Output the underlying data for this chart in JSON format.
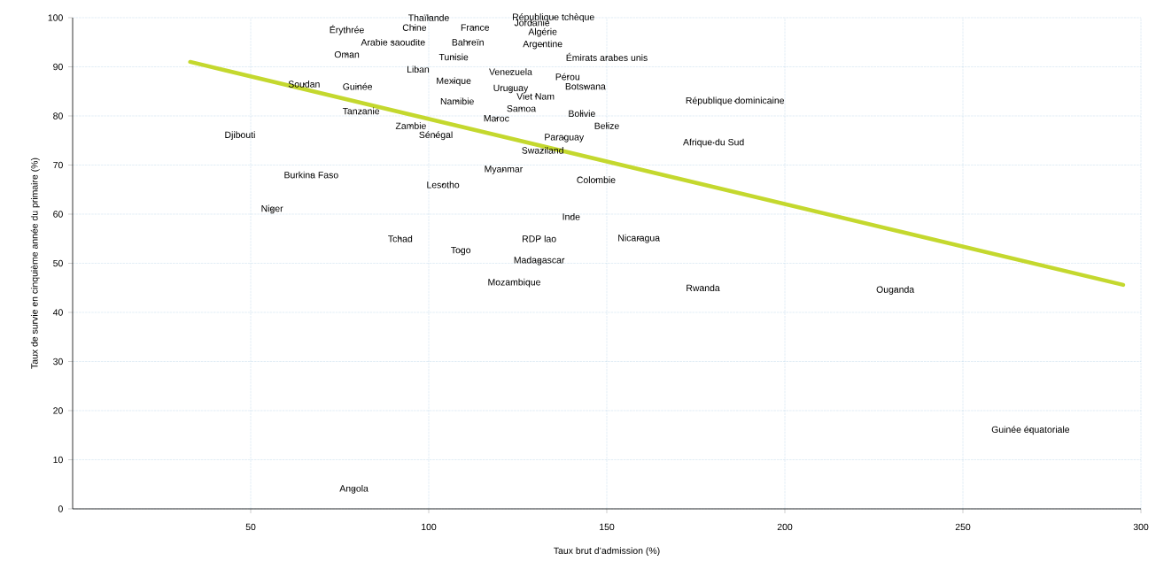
{
  "chart_data": {
    "type": "scatter",
    "xlabel": "Taux brut d’admission (%)",
    "ylabel": "Taux de survie en cinquième année du primaire (%)",
    "xlim": [
      0,
      300
    ],
    "xticks": [
      50,
      100,
      150,
      200,
      250,
      300
    ],
    "ylim": [
      0,
      100
    ],
    "yticks": [
      0,
      10,
      20,
      30,
      40,
      50,
      60,
      70,
      80,
      90,
      100
    ],
    "grid": true,
    "series": [
      {
        "color": "#000000",
        "x": [
          100,
          135,
          129,
          77,
          96,
          113,
          132,
          90,
          111,
          132,
          77,
          107,
          150,
          97,
          123,
          139,
          65,
          80,
          107,
          123,
          144,
          130,
          108,
          186,
          126,
          81,
          119,
          143,
          95,
          150,
          47,
          102,
          138,
          180,
          132,
          121,
          67,
          147,
          104,
          56,
          140,
          92,
          131,
          159,
          109,
          131,
          124,
          177,
          231,
          269,
          79
        ],
        "values": [
          100,
          100,
          99,
          97.5,
          98,
          98,
          97,
          95,
          95,
          94.5,
          92.5,
          92,
          92,
          89.5,
          89,
          88,
          86.5,
          86,
          87,
          85.5,
          86,
          84,
          83,
          83,
          81.5,
          81,
          79.5,
          80.5,
          78,
          78,
          76,
          76,
          75.5,
          74.5,
          73,
          69,
          68,
          67,
          66,
          61,
          59.5,
          55,
          55,
          55,
          52.5,
          50.5,
          46,
          45,
          44.5,
          16,
          4
        ],
        "value_labels": [
          "Thaïlande",
          "République tchèque",
          "Jordanie",
          "Érythrée",
          "Chine",
          "France",
          "Algérie",
          "Arabie saoudite",
          "Bahreïn",
          "Argentine",
          "Oman",
          "Tunisie",
          "Émirats arabes unis",
          "Liban",
          "Venezuela",
          "Pérou",
          "Soudan",
          "Guinée",
          "Mexique",
          "Uruguay",
          "Botswana",
          "Viet Nam",
          "Namibie",
          "République dominicaine",
          "Samoa",
          "Tanzanie",
          "Maroc",
          "Bolivie",
          "Zambie",
          "Belize",
          "Djibouti",
          "Sénégal",
          "Paraguay",
          "Afrique du Sud",
          "Swaziland",
          "Myanmar",
          "Burkina Faso",
          "Colombie",
          "Lesotho",
          "Niger",
          "Inde",
          "Tchad",
          "RDP lao",
          "Nicaragua",
          "Togo",
          "Madagascar",
          "Mozambique",
          "Rwanda",
          "Ouganda",
          "Guinée équatoriale",
          "Angola"
        ]
      },
      {
        "type": "line",
        "color": "#c4d82e",
        "x": [
          33,
          295
        ],
        "values": [
          91,
          45.6
        ]
      }
    ]
  }
}
